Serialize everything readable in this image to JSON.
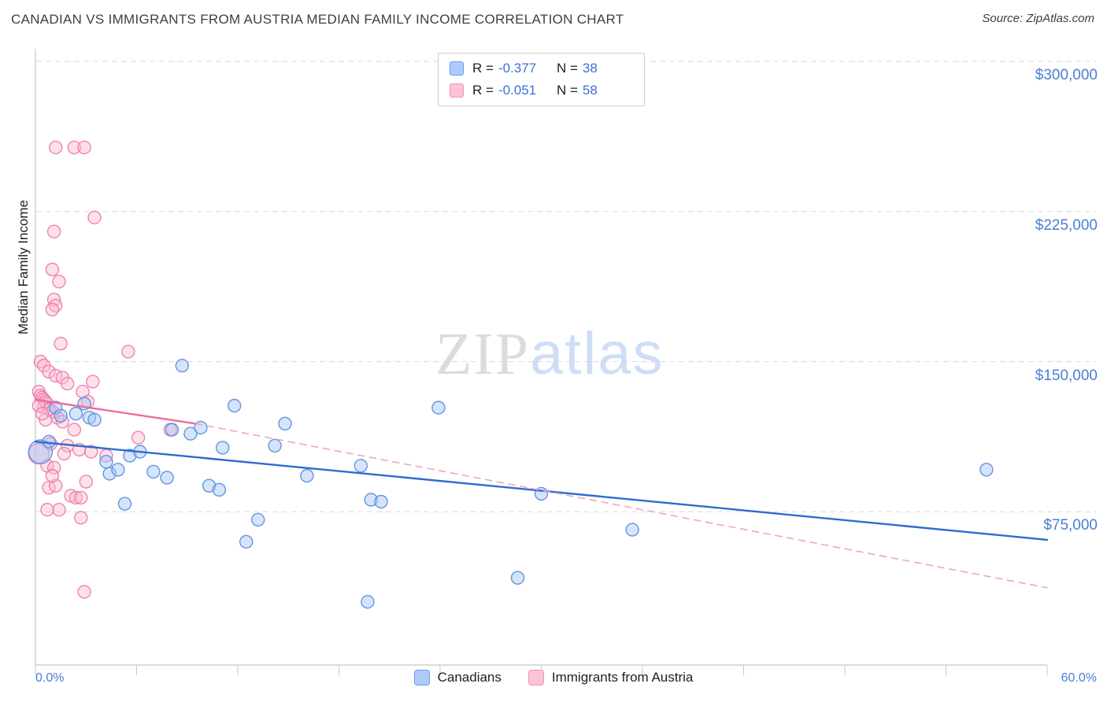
{
  "header": {
    "title": "CANADIAN VS IMMIGRANTS FROM AUSTRIA MEDIAN FAMILY INCOME CORRELATION CHART",
    "source_label": "Source:",
    "source_value": "ZipAtlas.com"
  },
  "watermark": {
    "part1": "ZIP",
    "part2": "atlas"
  },
  "stats_legend": {
    "rows": [
      {
        "series": "Canadians",
        "r_label": "R =",
        "r_value": "-0.377",
        "n_label": "N =",
        "n_value": "38"
      },
      {
        "series": "Immigrants from Austria",
        "r_label": "R =",
        "r_value": "-0.051",
        "n_label": "N =",
        "n_value": "58"
      }
    ]
  },
  "axes": {
    "y_label": "Median Family Income",
    "x_tick_left": "0.0%",
    "x_tick_right": "60.0%",
    "y_ticks": [
      {
        "label": "$300,000",
        "value": 300000
      },
      {
        "label": "$225,000",
        "value": 225000
      },
      {
        "label": "$150,000",
        "value": 150000
      },
      {
        "label": "$75,000",
        "value": 75000
      }
    ]
  },
  "bottom_legend": {
    "items": [
      {
        "label": "Canadians"
      },
      {
        "label": "Immigrants from Austria"
      }
    ]
  },
  "colors": {
    "canadians_fill": "#a3c4f3",
    "canadians_stroke": "#5b90e0",
    "austria_fill": "#f9bdd3",
    "austria_stroke": "#f07cab",
    "canadians_trend": "#2e6bd0",
    "austria_trend": "#ed6d9b",
    "austria_trend_dashed": "#f0a4c0",
    "axis_text_blue": "#4a7fd4",
    "gridline": "#d9d9d9",
    "axis_line": "#c8c8c8"
  },
  "chart_data": {
    "type": "scatter",
    "title": "CANADIAN VS IMMIGRANTS FROM AUSTRIA MEDIAN FAMILY INCOME CORRELATION CHART",
    "xlabel": "",
    "ylabel": "Median Family Income",
    "xlim": [
      0,
      60
    ],
    "ylim": [
      0,
      310000
    ],
    "x_axis_format": "percent",
    "x_tick_step_percent": 6,
    "grid": "horizontal-dashed",
    "legend_position": "bottom-center",
    "y_gridlines": [
      75000,
      150000,
      225000,
      300000
    ],
    "series": [
      {
        "name": "Canadians",
        "r": -0.377,
        "n": 38,
        "points": [
          [
            0.3,
            105000,
            15
          ],
          [
            0.8,
            110000
          ],
          [
            1.2,
            127000
          ],
          [
            1.5,
            123000
          ],
          [
            2.4,
            124000
          ],
          [
            2.9,
            129000
          ],
          [
            3.2,
            122000
          ],
          [
            3.5,
            121000
          ],
          [
            4.2,
            100000
          ],
          [
            4.4,
            94000
          ],
          [
            4.9,
            96000
          ],
          [
            5.3,
            79000
          ],
          [
            5.6,
            103000
          ],
          [
            6.2,
            105000
          ],
          [
            7.0,
            95000
          ],
          [
            7.8,
            92000
          ],
          [
            8.1,
            116000
          ],
          [
            8.7,
            148000
          ],
          [
            9.2,
            114000
          ],
          [
            9.8,
            117000
          ],
          [
            10.3,
            88000
          ],
          [
            10.9,
            86000
          ],
          [
            11.1,
            107000
          ],
          [
            11.8,
            128000
          ],
          [
            12.5,
            60000
          ],
          [
            13.2,
            71000
          ],
          [
            14.2,
            108000
          ],
          [
            14.8,
            119000
          ],
          [
            16.1,
            93000
          ],
          [
            19.3,
            98000
          ],
          [
            19.7,
            30000
          ],
          [
            19.9,
            81000
          ],
          [
            20.5,
            80000
          ],
          [
            23.9,
            127000
          ],
          [
            28.6,
            42000
          ],
          [
            30.0,
            84000
          ],
          [
            35.4,
            66000
          ],
          [
            56.4,
            96000
          ]
        ]
      },
      {
        "name": "Immigrants from Austria",
        "r": -0.051,
        "n": 58,
        "points": [
          [
            1.2,
            257000
          ],
          [
            2.3,
            257000
          ],
          [
            2.9,
            257000
          ],
          [
            3.5,
            222000
          ],
          [
            1.1,
            215000
          ],
          [
            1.0,
            196000
          ],
          [
            1.4,
            190000
          ],
          [
            1.1,
            181000
          ],
          [
            1.2,
            178000
          ],
          [
            1.0,
            176000
          ],
          [
            1.5,
            159000
          ],
          [
            5.5,
            155000
          ],
          [
            0.3,
            150000
          ],
          [
            0.5,
            148000
          ],
          [
            0.8,
            145000
          ],
          [
            1.2,
            143000
          ],
          [
            1.6,
            142000
          ],
          [
            1.9,
            139000
          ],
          [
            3.4,
            140000
          ],
          [
            0.2,
            135000
          ],
          [
            0.3,
            133000
          ],
          [
            0.4,
            132000
          ],
          [
            0.5,
            131000
          ],
          [
            0.6,
            130000
          ],
          [
            0.7,
            129000
          ],
          [
            0.5,
            127000
          ],
          [
            0.8,
            126000
          ],
          [
            1.0,
            125000
          ],
          [
            1.3,
            122000
          ],
          [
            0.6,
            121000
          ],
          [
            2.8,
            135000
          ],
          [
            3.1,
            130000
          ],
          [
            1.6,
            120000
          ],
          [
            6.1,
            112000
          ],
          [
            8.0,
            116000
          ],
          [
            2.3,
            116000
          ],
          [
            1.9,
            108000
          ],
          [
            2.6,
            106000
          ],
          [
            3.3,
            105000
          ],
          [
            0.9,
            109000
          ],
          [
            4.2,
            103000
          ],
          [
            0.7,
            98000
          ],
          [
            1.1,
            97000
          ],
          [
            2.1,
            83000
          ],
          [
            2.4,
            82000
          ],
          [
            2.7,
            82000
          ],
          [
            0.8,
            87000
          ],
          [
            1.2,
            88000
          ],
          [
            1.4,
            76000
          ],
          [
            0.7,
            76000
          ],
          [
            2.7,
            72000
          ],
          [
            2.9,
            35000
          ],
          [
            3.0,
            90000
          ],
          [
            0.2,
            128000
          ],
          [
            0.4,
            124000
          ],
          [
            0.2,
            104000,
            13
          ],
          [
            1.0,
            93000
          ],
          [
            1.7,
            104000
          ]
        ]
      }
    ],
    "trend_lines": [
      {
        "series": "Canadians",
        "style": "solid",
        "color": "#2e6bd0",
        "x1": 0,
        "y1": 110000,
        "x2": 60,
        "y2": 61000
      },
      {
        "series": "Immigrants from Austria",
        "style": "solid",
        "color": "#ed6d9b",
        "x1": 0,
        "y1": 131000,
        "x2": 9.5,
        "y2": 119000
      },
      {
        "series": "Immigrants from Austria",
        "style": "dashed",
        "color": "#f0a4c0",
        "x1": 9.5,
        "y1": 119000,
        "x2": 60,
        "y2": 37000
      }
    ]
  }
}
